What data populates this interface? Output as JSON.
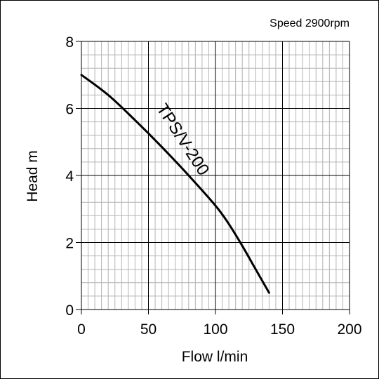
{
  "chart_data": {
    "type": "line",
    "annotation": "Speed 2900rpm",
    "xlabel": "Flow l/min",
    "ylabel": "Head m",
    "xlim": [
      0,
      200
    ],
    "ylim": [
      0,
      8
    ],
    "xticks": [
      "0",
      "50",
      "100",
      "150",
      "200"
    ],
    "yticks": [
      "0",
      "2",
      "4",
      "6",
      "8"
    ],
    "grid": true,
    "series": [
      {
        "name": "TPS/V-200",
        "x": [
          0,
          20,
          40,
          60,
          80,
          100,
          110,
          120,
          130,
          140
        ],
        "y": [
          7.0,
          6.4,
          5.65,
          4.85,
          4.0,
          3.1,
          2.55,
          1.9,
          1.2,
          0.5
        ]
      }
    ],
    "colors": {
      "curve": "#000000",
      "major_grid": "#000000",
      "minor_grid": "#b4b4b4"
    }
  }
}
